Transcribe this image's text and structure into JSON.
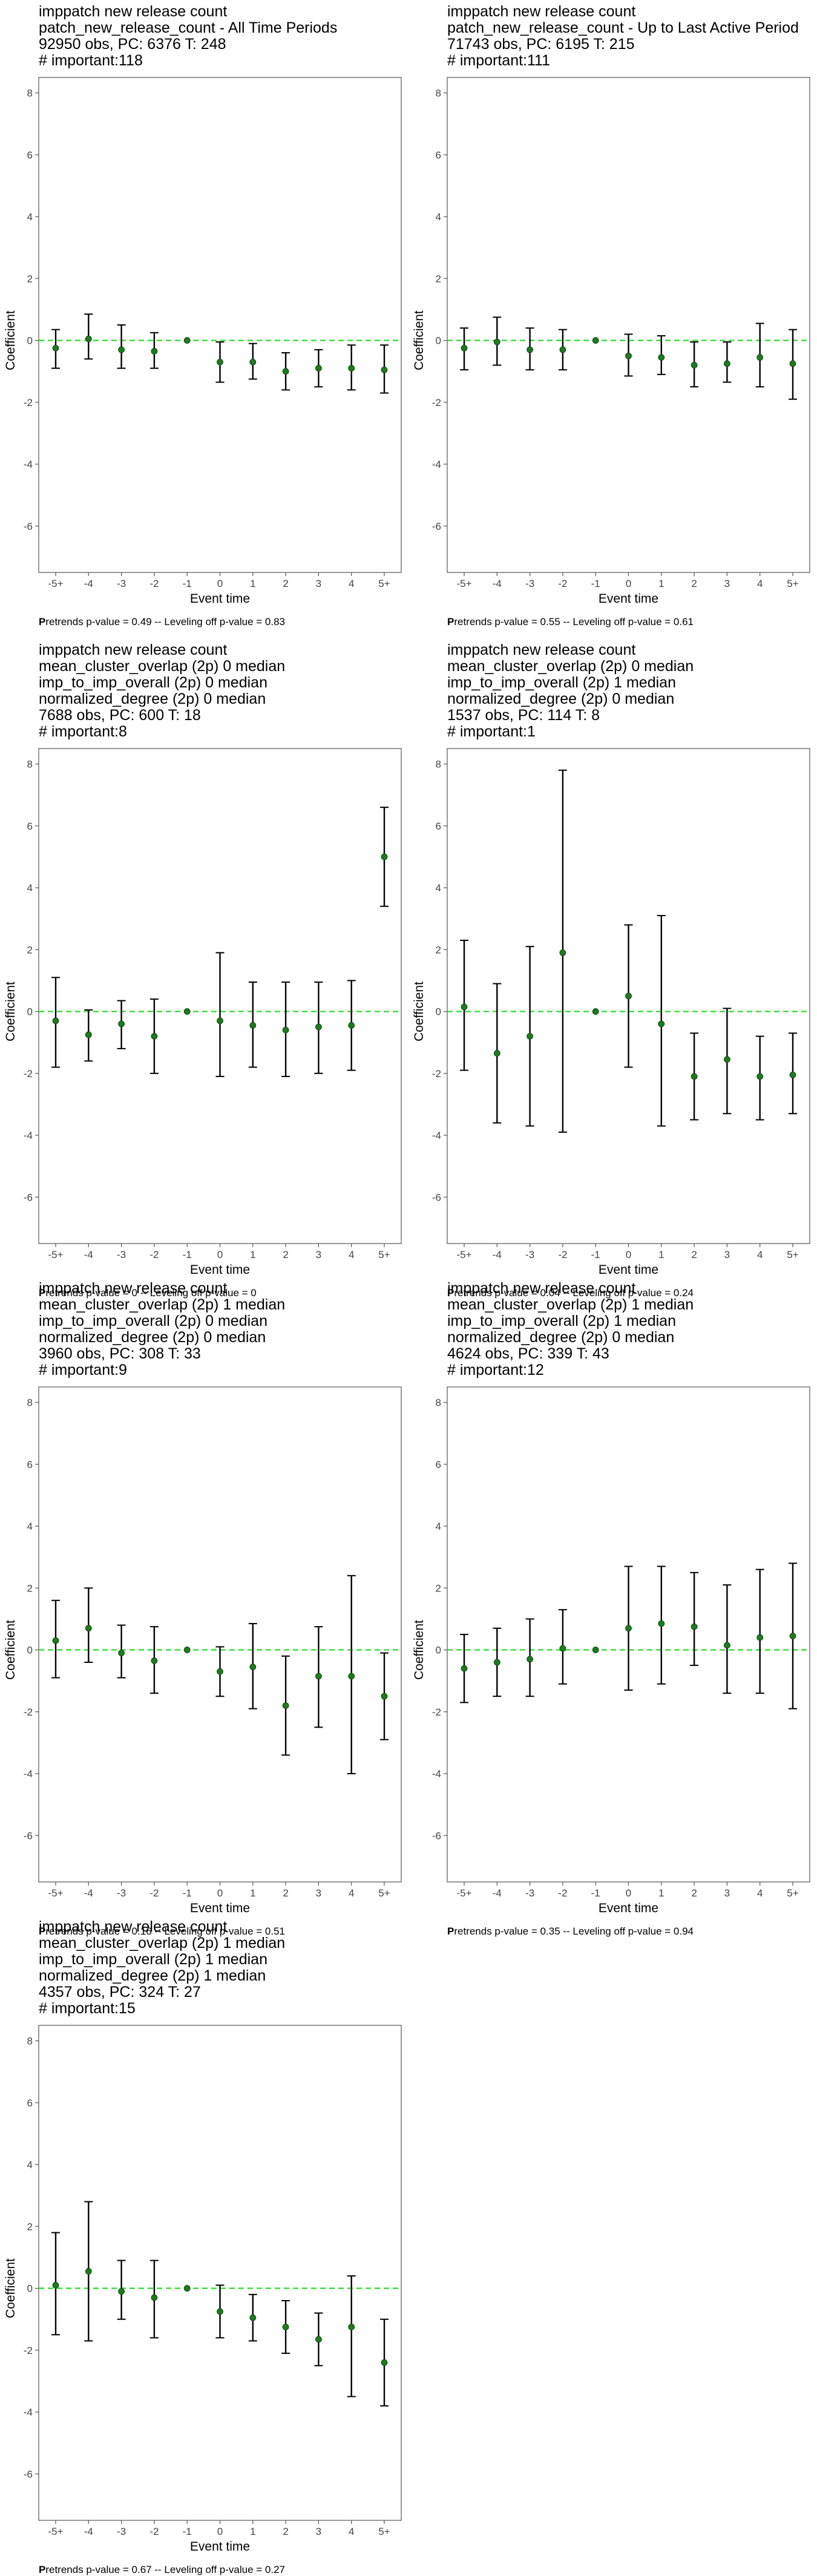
{
  "chart_data": [
    {
      "type": "scatter",
      "title_lines": [
        "imppatch new release count",
        "patch_new_release_count - All Time Periods",
        "92950 obs, PC: 6376 T: 248",
        "# important:118"
      ],
      "xlabel": "Event time",
      "ylabel": "Coefficient",
      "x": [
        "-5+",
        "-4",
        "-3",
        "-2",
        "-1",
        "0",
        "1",
        "2",
        "3",
        "4",
        "5+"
      ],
      "y": [
        -0.25,
        0.05,
        -0.3,
        -0.35,
        0,
        -0.7,
        -0.7,
        -1.0,
        -0.9,
        -0.9,
        -0.95
      ],
      "ci_low": [
        -0.9,
        -0.6,
        -0.9,
        -0.9,
        0,
        -1.35,
        -1.25,
        -1.6,
        -1.5,
        -1.6,
        -1.7
      ],
      "ci_high": [
        0.35,
        0.85,
        0.5,
        0.25,
        0,
        -0.05,
        -0.1,
        -0.4,
        -0.3,
        -0.15,
        -0.15
      ],
      "ylim": [
        -7.5,
        8.5
      ],
      "yticks": [
        -6,
        -4,
        -2,
        0,
        2,
        4,
        6,
        8
      ],
      "reference_line": 0,
      "caption_prefix": "P",
      "caption": "retrends p-value = 0.49 -- Leveling off p-value = 0.83"
    },
    {
      "type": "scatter",
      "title_lines": [
        "imppatch new release count",
        "patch_new_release_count - Up to Last Active Period",
        "71743 obs, PC: 6195 T: 215",
        "# important:111"
      ],
      "xlabel": "Event time",
      "ylabel": "Coefficient",
      "x": [
        "-5+",
        "-4",
        "-3",
        "-2",
        "-1",
        "0",
        "1",
        "2",
        "3",
        "4",
        "5+"
      ],
      "y": [
        -0.25,
        -0.05,
        -0.3,
        -0.3,
        0,
        -0.5,
        -0.55,
        -0.8,
        -0.75,
        -0.55,
        -0.75
      ],
      "ci_low": [
        -0.95,
        -0.8,
        -0.95,
        -0.95,
        0,
        -1.15,
        -1.1,
        -1.5,
        -1.35,
        -1.5,
        -1.9
      ],
      "ci_high": [
        0.4,
        0.75,
        0.4,
        0.35,
        0,
        0.2,
        0.15,
        -0.05,
        -0.05,
        0.55,
        0.35
      ],
      "ylim": [
        -7.5,
        8.5
      ],
      "yticks": [
        -6,
        -4,
        -2,
        0,
        2,
        4,
        6,
        8
      ],
      "reference_line": 0,
      "caption_prefix": "P",
      "caption": "retrends p-value = 0.55 -- Leveling off p-value = 0.61"
    },
    {
      "type": "scatter",
      "title_lines": [
        "imppatch new release count",
        "mean_cluster_overlap (2p) 0 median",
        "imp_to_imp_overall (2p) 0 median",
        "normalized_degree (2p) 0 median",
        "7688 obs, PC: 600 T: 18",
        "# important:8"
      ],
      "xlabel": "Event time",
      "ylabel": "Coefficient",
      "x": [
        "-5+",
        "-4",
        "-3",
        "-2",
        "-1",
        "0",
        "1",
        "2",
        "3",
        "4",
        "5+"
      ],
      "y": [
        -0.3,
        -0.75,
        -0.4,
        -0.8,
        0,
        -0.3,
        -0.45,
        -0.6,
        -0.5,
        -0.45,
        5.0
      ],
      "ci_low": [
        -1.8,
        -1.6,
        -1.2,
        -2.0,
        0,
        -2.1,
        -1.8,
        -2.1,
        -2.0,
        -1.9,
        3.4
      ],
      "ci_high": [
        1.1,
        0.05,
        0.35,
        0.4,
        0,
        1.9,
        0.95,
        0.95,
        0.95,
        1.0,
        6.6
      ],
      "ylim": [
        -7.5,
        8.5
      ],
      "yticks": [
        -6,
        -4,
        -2,
        0,
        2,
        4,
        6,
        8
      ],
      "reference_line": 0,
      "caption_prefix": "P",
      "caption": "retrends p-value = 0 -- Leveling off p-value = 0"
    },
    {
      "type": "scatter",
      "title_lines": [
        "imppatch new release count",
        "mean_cluster_overlap (2p) 0 median",
        "imp_to_imp_overall (2p) 1 median",
        "normalized_degree (2p) 0 median",
        "1537 obs, PC: 114 T: 8",
        "# important:1"
      ],
      "xlabel": "Event time",
      "ylabel": "Coefficient",
      "x": [
        "-5+",
        "-4",
        "-3",
        "-2",
        "-1",
        "0",
        "1",
        "2",
        "3",
        "4",
        "5+"
      ],
      "y": [
        0.15,
        -1.35,
        -0.8,
        1.9,
        0,
        0.5,
        -0.4,
        -2.1,
        -1.55,
        -2.1,
        -2.05
      ],
      "ci_low": [
        -1.9,
        -3.6,
        -3.7,
        -3.9,
        0,
        -1.8,
        -3.7,
        -3.5,
        -3.3,
        -3.5,
        -3.3
      ],
      "ci_high": [
        2.3,
        0.9,
        2.1,
        7.8,
        0,
        2.8,
        3.1,
        -0.7,
        0.1,
        -0.8,
        -0.7
      ],
      "ylim": [
        -7.5,
        8.5
      ],
      "yticks": [
        -6,
        -4,
        -2,
        0,
        2,
        4,
        6,
        8
      ],
      "reference_line": 0,
      "caption_prefix": "P",
      "caption": "retrends p-value = 0.04 -- Leveling off p-value = 0.24"
    },
    {
      "type": "scatter",
      "title_lines": [
        "imppatch new release count",
        "mean_cluster_overlap (2p) 1 median",
        "imp_to_imp_overall (2p) 0 median",
        "normalized_degree (2p) 0 median",
        "3960 obs, PC: 308 T: 33",
        "# important:9"
      ],
      "xlabel": "Event time",
      "ylabel": "Coefficient",
      "x": [
        "-5+",
        "-4",
        "-3",
        "-2",
        "-1",
        "0",
        "1",
        "2",
        "3",
        "4",
        "5+"
      ],
      "y": [
        0.3,
        0.7,
        -0.1,
        -0.35,
        0,
        -0.7,
        -0.55,
        -1.8,
        -0.85,
        -0.85,
        -1.5
      ],
      "ci_low": [
        -0.9,
        -0.4,
        -0.9,
        -1.4,
        0,
        -1.5,
        -1.9,
        -3.4,
        -2.5,
        -4.0,
        -2.9
      ],
      "ci_high": [
        1.6,
        2.0,
        0.8,
        0.75,
        0,
        0.1,
        0.85,
        -0.2,
        0.75,
        2.4,
        -0.1
      ],
      "ylim": [
        -7.5,
        8.5
      ],
      "yticks": [
        -6,
        -4,
        -2,
        0,
        2,
        4,
        6,
        8
      ],
      "reference_line": 0,
      "caption_prefix": "P",
      "caption": "retrends p-value = 0.16 -- Leveling off p-value = 0.51"
    },
    {
      "type": "scatter",
      "title_lines": [
        "imppatch new release count",
        "mean_cluster_overlap (2p) 1 median",
        "imp_to_imp_overall (2p) 1 median",
        "normalized_degree (2p) 0 median",
        "4624 obs, PC: 339 T: 43",
        "# important:12"
      ],
      "xlabel": "Event time",
      "ylabel": "Coefficient",
      "x": [
        "-5+",
        "-4",
        "-3",
        "-2",
        "-1",
        "0",
        "1",
        "2",
        "3",
        "4",
        "5+"
      ],
      "y": [
        -0.6,
        -0.4,
        -0.3,
        0.05,
        0,
        0.7,
        0.85,
        0.75,
        0.15,
        0.4,
        0.45
      ],
      "ci_low": [
        -1.7,
        -1.5,
        -1.5,
        -1.1,
        0,
        -1.3,
        -1.1,
        -0.5,
        -1.4,
        -1.4,
        -1.9
      ],
      "ci_high": [
        0.5,
        0.7,
        1.0,
        1.3,
        0,
        2.7,
        2.7,
        2.5,
        2.1,
        2.6,
        2.8
      ],
      "ylim": [
        -7.5,
        8.5
      ],
      "yticks": [
        -6,
        -4,
        -2,
        0,
        2,
        4,
        6,
        8
      ],
      "reference_line": 0,
      "caption_prefix": "P",
      "caption": "retrends p-value = 0.35 -- Leveling off p-value = 0.94"
    },
    {
      "type": "scatter",
      "title_lines": [
        "imppatch new release count",
        "mean_cluster_overlap (2p) 1 median",
        "imp_to_imp_overall (2p) 1 median",
        "normalized_degree (2p) 1 median",
        "4357 obs, PC: 324 T: 27",
        "# important:15"
      ],
      "xlabel": "Event time",
      "ylabel": "Coefficient",
      "x": [
        "-5+",
        "-4",
        "-3",
        "-2",
        "-1",
        "0",
        "1",
        "2",
        "3",
        "4",
        "5+"
      ],
      "y": [
        0.1,
        0.55,
        -0.1,
        -0.3,
        0,
        -0.75,
        -0.95,
        -1.25,
        -1.65,
        -1.25,
        -2.4
      ],
      "ci_low": [
        -1.5,
        -1.7,
        -1.0,
        -1.6,
        0,
        -1.6,
        -1.7,
        -2.1,
        -2.5,
        -3.5,
        -3.8
      ],
      "ci_high": [
        1.8,
        2.8,
        0.9,
        0.9,
        0,
        0.1,
        -0.2,
        -0.4,
        -0.8,
        0.4,
        -1.0
      ],
      "ylim": [
        -7.5,
        8.5
      ],
      "yticks": [
        -6,
        -4,
        -2,
        0,
        2,
        4,
        6,
        8
      ],
      "reference_line": 0,
      "caption_prefix": "P",
      "caption": "retrends p-value = 0.67 -- Leveling off p-value = 0.27"
    }
  ],
  "colors": {
    "point": "#1e7a1e",
    "errorbar": "#000000",
    "reference_line": "#33dd33",
    "axis": "#555555",
    "tick_label": "#444444"
  }
}
